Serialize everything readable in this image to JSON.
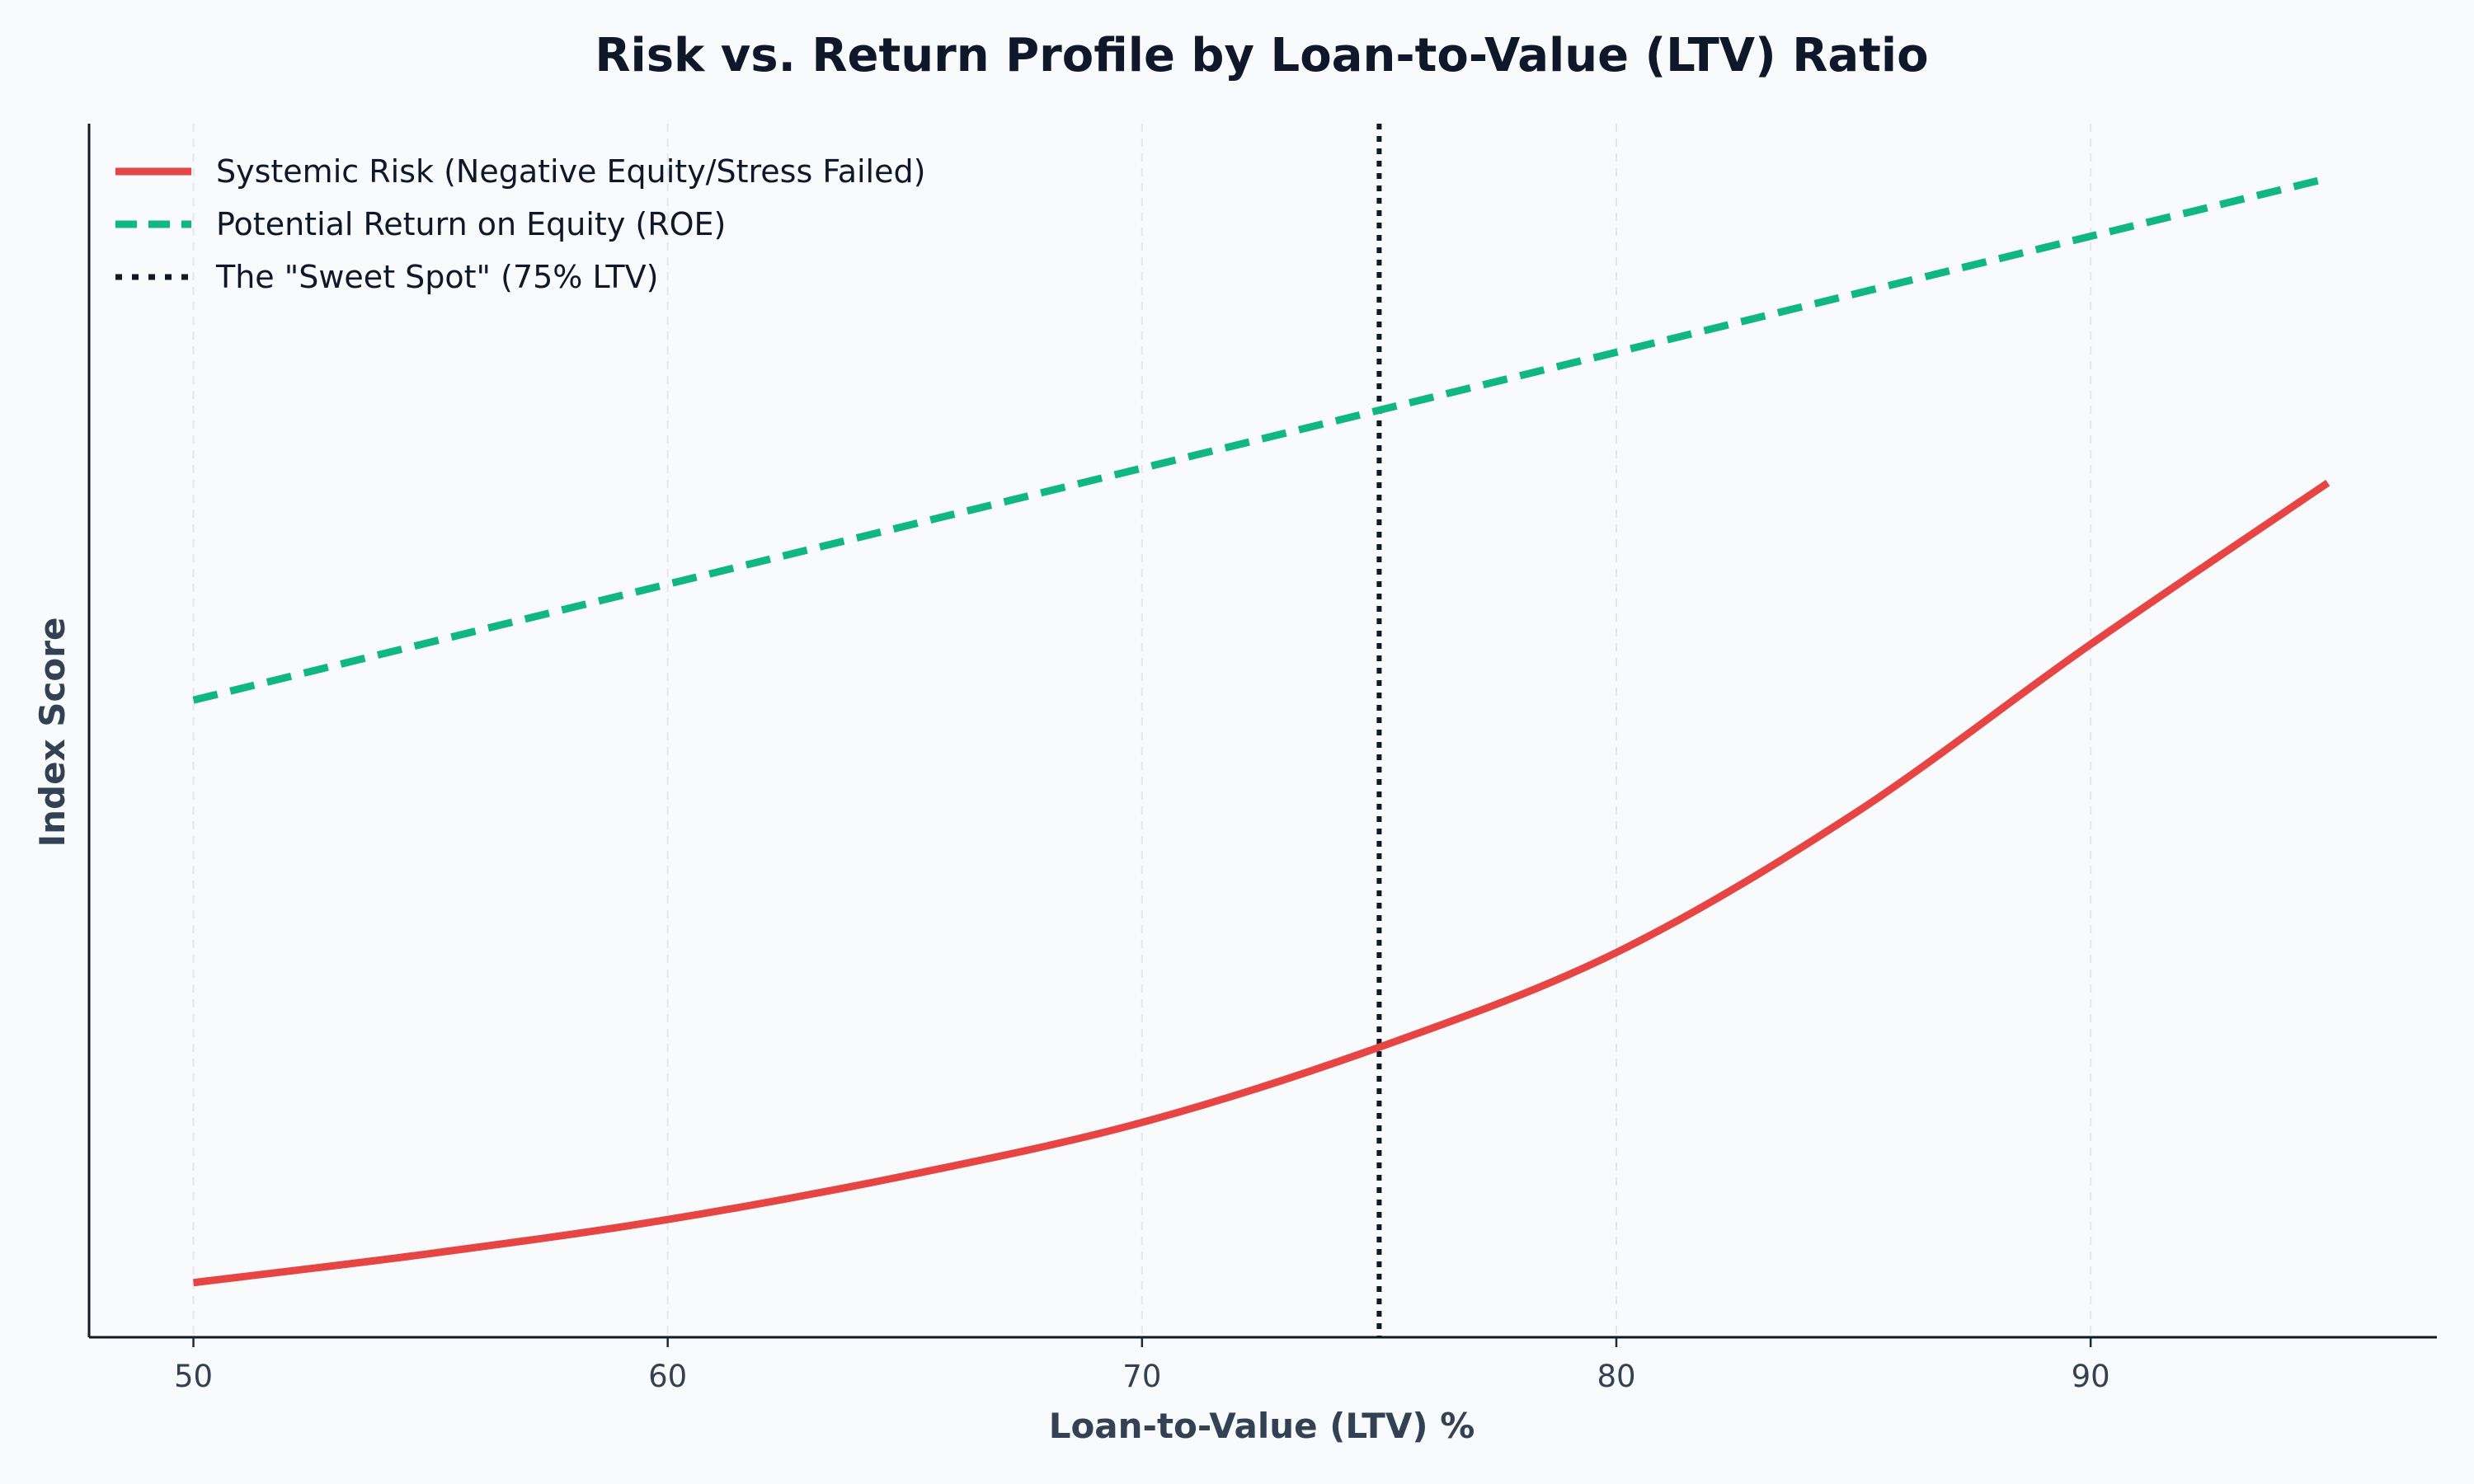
{
  "chart_data": {
    "type": "line",
    "title": "Risk vs. Return Profile by Loan-to-Value (LTV) Ratio",
    "xlabel": "Loan-to-Value (LTV) %",
    "ylabel": "Index Score",
    "xlim": [
      47.8,
      97.3
    ],
    "ylim": [
      0,
      1
    ],
    "x_ticks": [
      50,
      60,
      70,
      80,
      90
    ],
    "y_ticks_shown": false,
    "grid": "vertical-dashed",
    "legend_placement": "top-left",
    "series": [
      {
        "name": "Systemic Risk (Negative Equity/Stress Failed)",
        "style": "solid",
        "color": "#e74444",
        "x": [
          50,
          55,
          60,
          65,
          70,
          75,
          80,
          85,
          90,
          95
        ],
        "y": [
          0.045,
          0.069,
          0.097,
          0.133,
          0.177,
          0.239,
          0.317,
          0.431,
          0.571,
          0.704
        ]
      },
      {
        "name": "Potential Return on Equity (ROE)",
        "style": "dashed",
        "color": "#10b77f",
        "x": [
          50,
          95
        ],
        "y": [
          0.525,
          0.955
        ]
      }
    ],
    "reference_lines": [
      {
        "name": "The \"Sweet Spot\" (75% LTV)",
        "style": "dotted",
        "color": "#111827",
        "x": 75
      }
    ]
  }
}
